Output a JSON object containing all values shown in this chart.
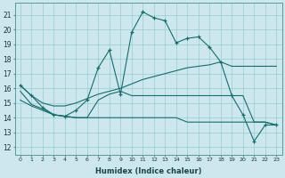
{
  "xlabel": "Humidex (Indice chaleur)",
  "background_color": "#cce8ee",
  "grid_color": "#99cccc",
  "line_color": "#1a6b6b",
  "xlim": [
    -0.5,
    23.5
  ],
  "ylim": [
    11.5,
    21.8
  ],
  "yticks": [
    12,
    13,
    14,
    15,
    16,
    17,
    18,
    19,
    20,
    21
  ],
  "xticks": [
    0,
    1,
    2,
    3,
    4,
    5,
    6,
    7,
    8,
    9,
    10,
    11,
    12,
    13,
    14,
    15,
    16,
    17,
    18,
    19,
    20,
    21,
    22,
    23
  ],
  "series_markers": [
    [
      16.2,
      15.5,
      14.7,
      14.2,
      14.1,
      14.5,
      15.2,
      17.4,
      18.6,
      15.6,
      19.8,
      21.2,
      20.8,
      20.6,
      19.1,
      19.4,
      19.5,
      18.8,
      17.8,
      15.5,
      14.2,
      12.4,
      13.5,
      13.5
    ]
  ],
  "series_plain": [
    [
      16.2,
      15.5,
      15.0,
      14.8,
      14.8,
      15.0,
      15.3,
      15.6,
      15.8,
      16.0,
      16.3,
      16.6,
      16.8,
      17.0,
      17.2,
      17.4,
      17.5,
      17.6,
      17.8,
      17.5,
      17.5,
      17.5,
      17.5,
      17.5
    ],
    [
      15.8,
      14.9,
      14.6,
      14.2,
      14.1,
      14.0,
      14.0,
      15.2,
      15.6,
      15.8,
      15.5,
      15.5,
      15.5,
      15.5,
      15.5,
      15.5,
      15.5,
      15.5,
      15.5,
      15.5,
      15.5,
      13.7,
      13.7,
      13.5
    ],
    [
      15.2,
      14.8,
      14.5,
      14.2,
      14.1,
      14.0,
      14.0,
      14.0,
      14.0,
      14.0,
      14.0,
      14.0,
      14.0,
      14.0,
      14.0,
      13.7,
      13.7,
      13.7,
      13.7,
      13.7,
      13.7,
      13.7,
      13.7,
      13.5
    ]
  ]
}
